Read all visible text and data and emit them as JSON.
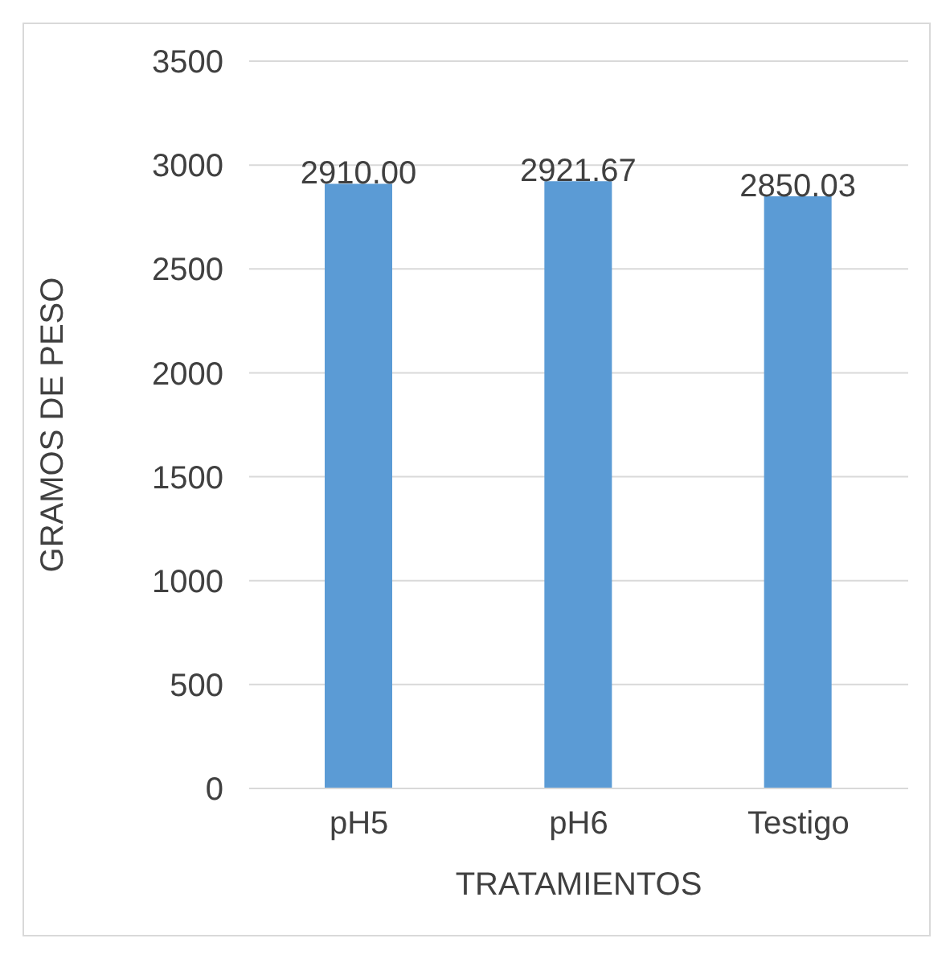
{
  "chart_data": {
    "type": "bar",
    "categories": [
      "pH5",
      "pH6",
      "Testigo"
    ],
    "values": [
      2910.0,
      2921.67,
      2850.03
    ],
    "value_labels": [
      "2910.00",
      "2921.67",
      "2850.03"
    ],
    "color": "#5b9bd5",
    "xlabel": "TRATAMIENTOS",
    "ylabel": "GRAMOS DE PESO",
    "ylim": [
      0,
      3500
    ],
    "yticks": [
      0,
      500,
      1000,
      1500,
      2000,
      2500,
      3000,
      3500
    ],
    "grid": "y"
  }
}
